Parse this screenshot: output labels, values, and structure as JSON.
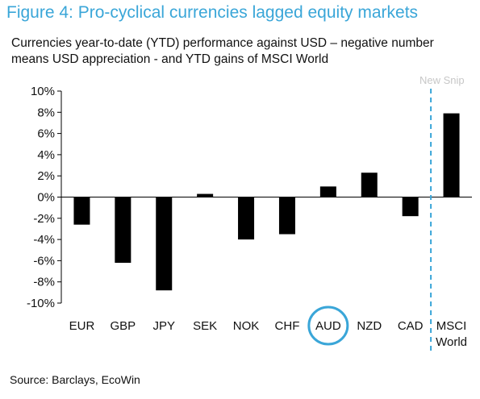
{
  "figure": {
    "title": "Figure 4: Pro-cyclical currencies lagged equity markets",
    "subtitle": "Currencies year-to-date (YTD) performance against USD – negative number means USD appreciation - and YTD gains of MSCI World",
    "source": "Source: Barclays, EcoWin",
    "watermark": "New Snip"
  },
  "chart_data": {
    "type": "bar",
    "title": "Figure 4: Pro-cyclical currencies lagged equity markets",
    "categories": [
      "EUR",
      "GBP",
      "JPY",
      "SEK",
      "NOK",
      "CHF",
      "AUD",
      "NZD",
      "CAD",
      "MSCI World"
    ],
    "category_lines": [
      [
        "EUR"
      ],
      [
        "GBP"
      ],
      [
        "JPY"
      ],
      [
        "SEK"
      ],
      [
        "NOK"
      ],
      [
        "CHF"
      ],
      [
        "AUD"
      ],
      [
        "NZD"
      ],
      [
        "CAD"
      ],
      [
        "MSCI",
        "World"
      ]
    ],
    "values": [
      -2.6,
      -6.2,
      -8.8,
      0.3,
      -4.0,
      -3.5,
      1.0,
      2.3,
      -1.8,
      7.9
    ],
    "unit": "%",
    "ylim": [
      -10,
      10
    ],
    "yticks": [
      10,
      8,
      6,
      4,
      2,
      0,
      -2,
      -4,
      -6,
      -8,
      -10
    ],
    "ytick_labels": [
      "10%",
      "8%",
      "6%",
      "4%",
      "2%",
      "0%",
      "-2%",
      "-4%",
      "-6%",
      "-8%",
      "-10%"
    ],
    "grid": false,
    "legend": "none",
    "highlighted_category": "AUD",
    "separator_before": "MSCI World",
    "colors": {
      "bar": "#000000",
      "accent": "#3aa6d8",
      "title": "#3aa6d8"
    }
  }
}
